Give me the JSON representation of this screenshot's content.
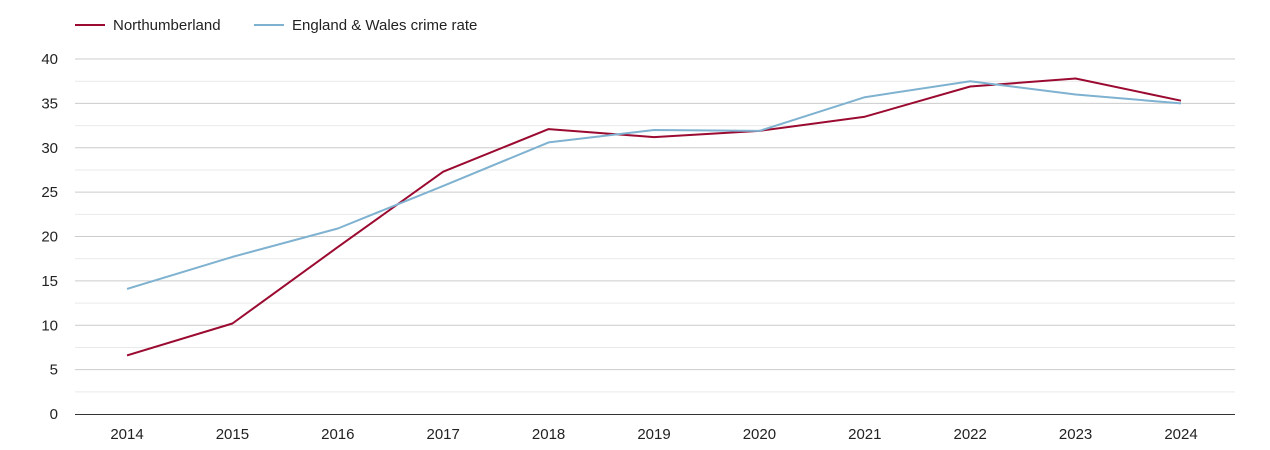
{
  "chart_data": {
    "type": "line",
    "x": [
      "2014",
      "2015",
      "2016",
      "2017",
      "2018",
      "2019",
      "2020",
      "2021",
      "2022",
      "2023",
      "2024"
    ],
    "series": [
      {
        "name": "Northumberland",
        "color": "#9b0a30",
        "values": [
          6.6,
          10.2,
          18.8,
          27.3,
          32.1,
          31.2,
          31.9,
          33.5,
          36.9,
          37.8,
          35.3
        ]
      },
      {
        "name": "England & Wales crime rate",
        "color": "#7fb2d0",
        "values": [
          14.1,
          17.7,
          20.9,
          25.7,
          30.6,
          32.0,
          31.9,
          35.7,
          37.5,
          36.0,
          35.0
        ]
      }
    ],
    "y_ticks": [
      "0",
      "5",
      "10",
      "15",
      "20",
      "25",
      "30",
      "35",
      "40"
    ],
    "ylim": [
      0,
      40
    ],
    "grid": true,
    "legend_position": "top-left",
    "title": "",
    "xlabel": "",
    "ylabel": ""
  }
}
